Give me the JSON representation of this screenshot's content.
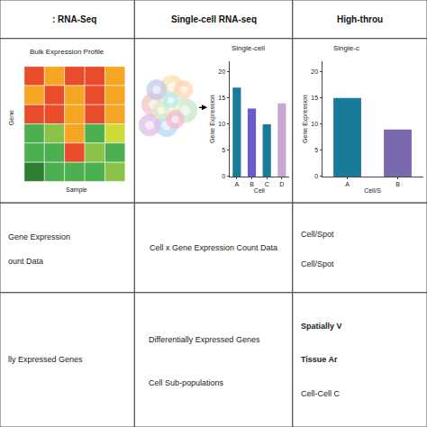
{
  "chart_data": [
    {
      "type": "heatmap",
      "title": "Bulk Expression Profile",
      "xlabel": "Sample",
      "ylabel": "Gene",
      "tick_labels": false,
      "colors": [
        [
          "#e84c2b",
          "#f5a623",
          "#e84c2b",
          "#e84c2b",
          "#f5a623"
        ],
        [
          "#f5a623",
          "#e84c2b",
          "#f5a623",
          "#e84c2b",
          "#f5a623"
        ],
        [
          "#e84c2b",
          "#e84c2b",
          "#f5a623",
          "#e84c2b",
          "#f5a623"
        ],
        [
          "#4caf50",
          "#8bc34a",
          "#f5a623",
          "#4caf50",
          "#cddc39"
        ],
        [
          "#4caf50",
          "#4caf50",
          "#e84c2b",
          "#8bc34a",
          "#4caf50"
        ],
        [
          "#2e7d32",
          "#4caf50",
          "#4caf50",
          "#4caf50",
          "#8bc34a"
        ]
      ]
    },
    {
      "type": "illustration",
      "colors": [
        "#f4c6c6",
        "#f9e0b0",
        "#c8e6c9",
        "#b3d9f5",
        "#e1bee7",
        "#fff9c4",
        "#ffd7b5",
        "#c5cae9",
        "#f8bbd0",
        "#dcedc8",
        "#b2ebf2"
      ]
    },
    {
      "type": "bar",
      "title": "Single-cell",
      "xlabel": "Cell",
      "ylabel": "Gene Expression",
      "categories": [
        "A",
        "B",
        "C",
        "D"
      ],
      "values": [
        17,
        13,
        10,
        14
      ],
      "colors": [
        "#1a7a9a",
        "#6a5acd",
        "#1a7a9a",
        "#c8a8d0"
      ],
      "ylim": [
        0,
        22
      ],
      "yticks": [
        0,
        5,
        10,
        15,
        20
      ],
      "grid": false
    },
    {
      "type": "bar",
      "title": "Single-c",
      "xlabel": "Cell/S",
      "ylabel": "Gene Expression",
      "categories": [
        "A",
        "B"
      ],
      "values": [
        15,
        9
      ],
      "colors": [
        "#1a7a9a",
        "#7a6aad"
      ],
      "ylim": [
        0,
        22
      ],
      "yticks": [
        0,
        5,
        10,
        15,
        20
      ],
      "grid": false
    }
  ],
  "table": {
    "headers": [
      ": RNA-Seq",
      "Single-cell RNA-seq",
      "High-throu"
    ],
    "rows": [
      [
        [
          "Gene Expression",
          "ount Data"
        ],
        [
          "Cell x Gene Expression Count Data"
        ],
        [
          "Cell/Spot",
          "Cell/Spot"
        ]
      ],
      [
        [
          "lly Expressed Genes"
        ],
        [
          "Differentially Expressed Genes",
          "Cell Sub-populations"
        ],
        [
          "Spatially V",
          "Tissue Ar",
          "Cell-Cell C"
        ]
      ]
    ]
  }
}
